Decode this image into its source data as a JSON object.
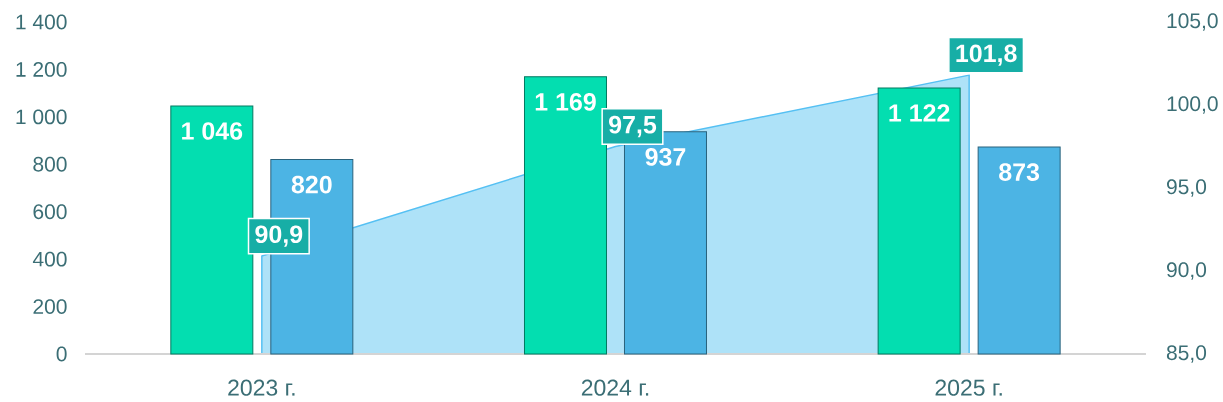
{
  "chart_data": {
    "type": "bar",
    "categories": [
      "2023 г.",
      "2024 г.",
      "2025 г."
    ],
    "series": [
      {
        "color": "#03deb0",
        "values": [
          1046,
          1169,
          1122
        ],
        "value_labels": [
          "1 046",
          "1 169",
          "1 122"
        ]
      },
      {
        "color": "#4cb4e4",
        "values": [
          820,
          937,
          873
        ],
        "value_labels": [
          "820",
          "937",
          "873"
        ]
      },
      {
        "type": "area",
        "axis": "y2",
        "color": "#aee2f8",
        "values": [
          90.9,
          97.5,
          101.8
        ],
        "value_labels": [
          "90,9",
          "97,5",
          "101,8"
        ]
      }
    ],
    "ylim": [
      0,
      1400
    ],
    "yticks": [
      0,
      200,
      400,
      600,
      800,
      {
        "value": 1000,
        "label": "1 000"
      },
      {
        "value": 1200,
        "label": "1 200"
      },
      {
        "value": 1400,
        "label": "1 400"
      }
    ],
    "y2lim": [
      85,
      105
    ],
    "y2ticks": [
      {
        "value": 85,
        "label": "85,0"
      },
      {
        "value": 90,
        "label": "90,0"
      },
      {
        "value": 95,
        "label": "95,0"
      },
      {
        "value": 100,
        "label": "100,0"
      },
      {
        "value": 105,
        "label": "105,0"
      }
    ]
  }
}
